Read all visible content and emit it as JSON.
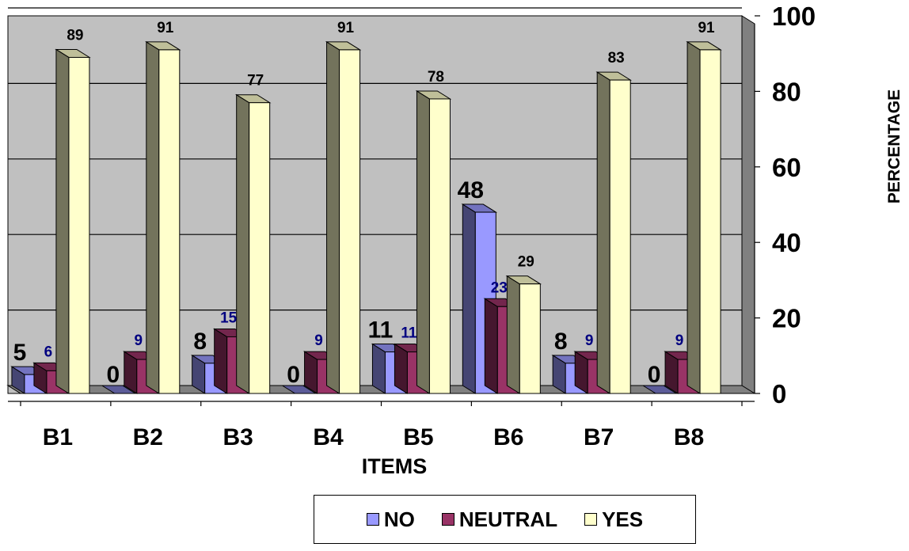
{
  "chart_data": {
    "type": "bar",
    "title": "",
    "xlabel": "ITEMS",
    "ylabel": "PERCENTAGE",
    "ylim": [
      0,
      100
    ],
    "yticks": [
      0,
      20,
      40,
      60,
      80,
      100
    ],
    "categories": [
      "B1",
      "B2",
      "B3",
      "B4",
      "B5",
      "B6",
      "B7",
      "B8"
    ],
    "series": [
      {
        "name": "NO",
        "values": [
          5,
          0,
          8,
          0,
          11,
          48,
          8,
          0
        ],
        "color": "#9999ff",
        "label_color": "#000000"
      },
      {
        "name": "NEUTRAL",
        "values": [
          6,
          9,
          15,
          9,
          11,
          23,
          9,
          9
        ],
        "color": "#993366",
        "label_color": "#000080"
      },
      {
        "name": "YES",
        "values": [
          89,
          91,
          77,
          91,
          78,
          29,
          83,
          91
        ],
        "color": "#ffffcc",
        "label_color": "#000000"
      }
    ],
    "grid": true,
    "legend_position": "bottom",
    "y_axis_side": "right",
    "three_d": true,
    "wall_color": "#c0c0c0"
  }
}
